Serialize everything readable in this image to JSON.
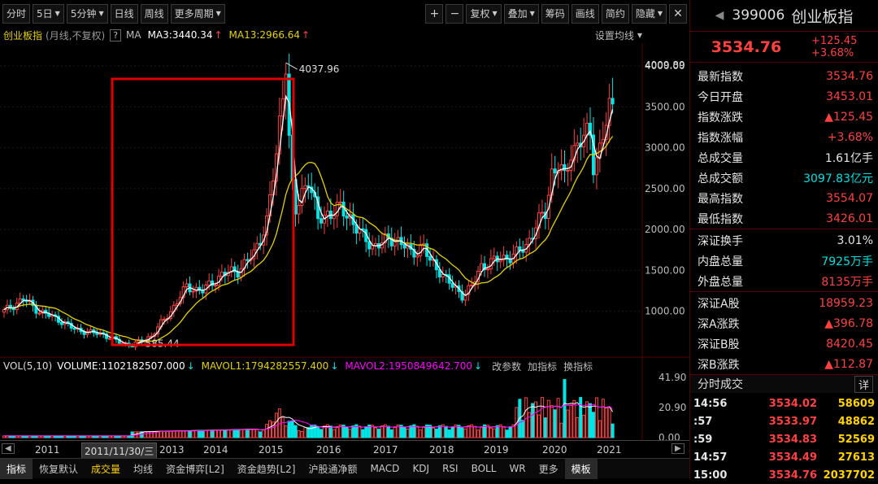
{
  "toolbar": {
    "left_buttons": [
      "分时",
      "5日",
      "5分钟",
      "日线",
      "周线",
      "更多周期"
    ],
    "dropdowns": [
      false,
      true,
      true,
      false,
      false,
      true
    ],
    "zoom_in": "+",
    "zoom_out": "−",
    "right_buttons": [
      "复权",
      "叠加",
      "筹码",
      "画线",
      "简约",
      "隐藏"
    ],
    "right_dropdowns": [
      true,
      true,
      false,
      false,
      false,
      true
    ]
  },
  "chart_info": {
    "name": "创业板指",
    "mode": "(月线,不复权)",
    "help": "?",
    "ma_label": "MA",
    "ma3": "MA3:3440.34",
    "ma13": "MA13:2966.64",
    "arrow_up": "↑",
    "settings": "设置均线"
  },
  "annotations": {
    "high": "4037.96",
    "low": "585.44",
    "top_price": "4009.89"
  },
  "vol_info": {
    "label": "VOL(5,10)",
    "volume": "VOLUME:1102182507.000",
    "mavol1": "MAVOL1:1794282557.400",
    "mavol2": "MAVOL2:1950849642.700",
    "arrow_down": "↓",
    "actions": [
      "改参数",
      "加指标",
      "换指标"
    ]
  },
  "xaxis": {
    "cursor_date": "2011/11/30/三"
  },
  "bottom_tabs": [
    "指标",
    "恢复默认",
    "成交量",
    "均线",
    "资金博弈[L2]",
    "资金趋势[L2]",
    "沪股通净额",
    "MACD",
    "KDJ",
    "RSI",
    "BOLL",
    "WR",
    "更多",
    "模板"
  ],
  "sidebar": {
    "code": "399006",
    "name": "创业板指",
    "price": "3534.76",
    "change": "+125.45",
    "change_pct": "+3.68%",
    "rows1": [
      {
        "label": "最新指数",
        "value": "3534.76",
        "cls": "up"
      },
      {
        "label": "今日开盘",
        "value": "3453.01",
        "cls": "up"
      },
      {
        "label": "指数涨跌",
        "value": "▲125.45",
        "cls": "up"
      },
      {
        "label": "指数涨幅",
        "value": "+3.68%",
        "cls": "up"
      },
      {
        "label": "总成交量",
        "value": "1.61亿手",
        "cls": "wh"
      },
      {
        "label": "总成交额",
        "value": "3097.83亿元",
        "cls": "dn"
      },
      {
        "label": "最高指数",
        "value": "3554.07",
        "cls": "up"
      },
      {
        "label": "最低指数",
        "value": "3426.01",
        "cls": "up"
      }
    ],
    "rows2": [
      {
        "label": "深证换手",
        "value": "3.01%",
        "cls": "wh"
      },
      {
        "label": "内盘总量",
        "value": "7925万手",
        "cls": "dn"
      },
      {
        "label": "外盘总量",
        "value": "8135万手",
        "cls": "up"
      }
    ],
    "rows3": [
      {
        "label": "深证A股",
        "value": "18959.23",
        "cls": "up"
      },
      {
        "label": "深A涨跌",
        "value": "▲396.78",
        "cls": "up"
      },
      {
        "label": "深证B股",
        "value": "8420.45",
        "cls": "up"
      },
      {
        "label": "深B涨跌",
        "value": "▲112.87",
        "cls": "up"
      }
    ],
    "ticks_title": "分时成交",
    "ticks_detail": "详",
    "ticks": [
      {
        "t": "14:56",
        "p": "3534.02",
        "v": "58609"
      },
      {
        "t": ":57",
        "p": "3533.97",
        "v": "48862"
      },
      {
        "t": ":59",
        "p": "3534.83",
        "v": "52569"
      },
      {
        "t": "14:57",
        "p": "3534.49",
        "v": "27613"
      },
      {
        "t": "15:00",
        "p": "3534.76",
        "v": "2037702"
      }
    ]
  },
  "chart_data": {
    "type": "candlestick",
    "price_axis": {
      "min": 500,
      "max": 4020,
      "ticks": [
        1000,
        1500,
        2000,
        2500,
        3000,
        3500,
        4000
      ],
      "top_label": "4009.89"
    },
    "volume_axis": {
      "max": 41.9,
      "ticks": [
        0.0,
        20.9,
        41.9
      ],
      "labels": [
        "0.00",
        "20.90",
        "41.90"
      ]
    },
    "x_labels": [
      "2011",
      "2013",
      "2014",
      "2015",
      "2016",
      "2017",
      "2018",
      "2019",
      "2020",
      "2021"
    ],
    "colors": {
      "up": "#ff4040",
      "down": "#00e5e5",
      "ma3": "#ffffff",
      "ma13": "#e6d200",
      "mavol1": "#ffffff",
      "mavol2": "#ff00ff"
    },
    "waypoints": [
      [
        0,
        1000
      ],
      [
        6,
        1150
      ],
      [
        11,
        1000
      ],
      [
        17,
        900
      ],
      [
        22,
        780
      ],
      [
        27,
        740
      ],
      [
        31,
        720
      ],
      [
        36,
        620
      ],
      [
        40,
        585
      ],
      [
        46,
        700
      ],
      [
        52,
        1000
      ],
      [
        57,
        1300
      ],
      [
        62,
        1250
      ],
      [
        68,
        1450
      ],
      [
        73,
        1500
      ],
      [
        78,
        1700
      ],
      [
        82,
        2100
      ],
      [
        85,
        2900
      ],
      [
        87,
        3700
      ],
      [
        88,
        4038
      ],
      [
        89,
        3100
      ],
      [
        90,
        2500
      ],
      [
        91,
        2200
      ],
      [
        93,
        2450
      ],
      [
        95,
        2650
      ],
      [
        98,
        2100
      ],
      [
        101,
        2200
      ],
      [
        105,
        2250
      ],
      [
        108,
        2150
      ],
      [
        112,
        1900
      ],
      [
        115,
        1800
      ],
      [
        119,
        1850
      ],
      [
        122,
        1900
      ],
      [
        125,
        1800
      ],
      [
        127,
        1700
      ],
      [
        131,
        1800
      ],
      [
        133,
        1600
      ],
      [
        136,
        1500
      ],
      [
        140,
        1300
      ],
      [
        143,
        1200
      ],
      [
        146,
        1300
      ],
      [
        149,
        1550
      ],
      [
        152,
        1600
      ],
      [
        156,
        1650
      ],
      [
        160,
        1700
      ],
      [
        163,
        1800
      ],
      [
        166,
        2050
      ],
      [
        169,
        2200
      ],
      [
        171,
        2700
      ],
      [
        173,
        2800
      ],
      [
        175,
        2600
      ],
      [
        177,
        2950
      ],
      [
        180,
        3100
      ],
      [
        183,
        3150
      ],
      [
        184,
        2800
      ],
      [
        186,
        3000
      ],
      [
        188,
        3300
      ],
      [
        189,
        3450
      ],
      [
        190,
        3535
      ]
    ]
  }
}
